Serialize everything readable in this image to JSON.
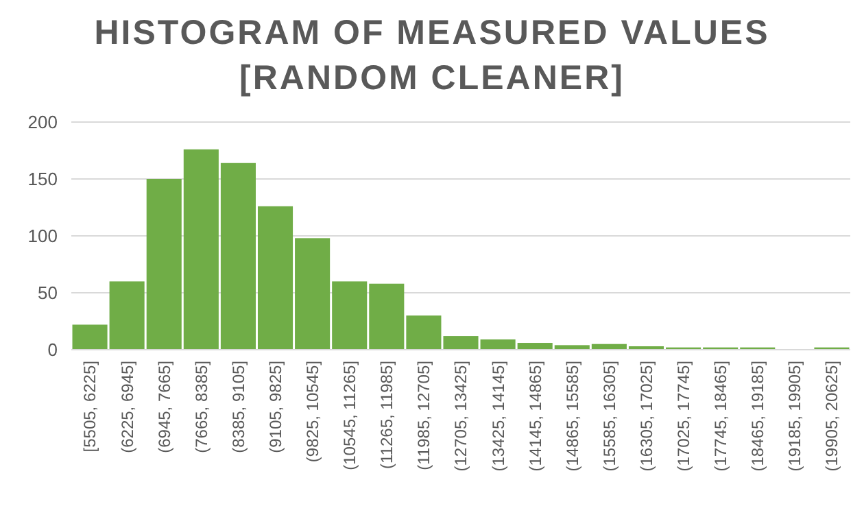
{
  "chart_data": {
    "type": "bar",
    "title": "HISTOGRAM OF MEASURED VALUES\n[RANDOM CLEANER]",
    "categories": [
      "[5505, 6225]",
      "(6225, 6945]",
      "(6945, 7665]",
      "(7665, 8385]",
      "(8385, 9105]",
      "(9105, 9825]",
      "(9825, 10545]",
      "(10545, 11265]",
      "(11265, 11985]",
      "(11985, 12705]",
      "(12705, 13425]",
      "(13425, 14145]",
      "(14145, 14865]",
      "(14865, 15585]",
      "(15585, 16305]",
      "(16305, 17025]",
      "(17025, 17745]",
      "(17745, 18465]",
      "(18465, 19185]",
      "(19185, 19905]",
      "(19905, 20625]"
    ],
    "values": [
      22,
      60,
      150,
      176,
      164,
      126,
      98,
      60,
      58,
      30,
      12,
      9,
      6,
      4,
      5,
      3,
      2,
      2,
      2,
      0,
      2
    ],
    "color": "#70ad47",
    "ylim": [
      0,
      200
    ],
    "yticks": [
      0,
      50,
      100,
      150,
      200
    ],
    "grid": "y"
  }
}
